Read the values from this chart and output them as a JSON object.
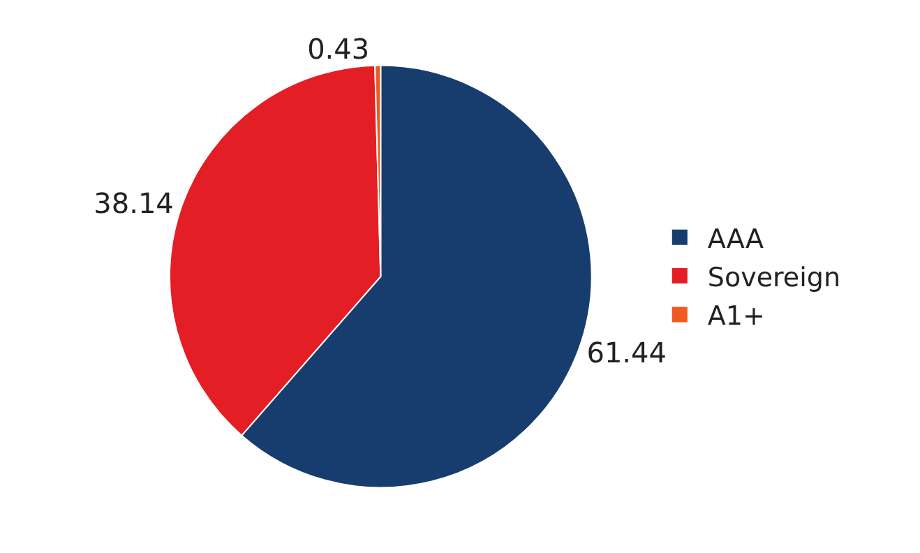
{
  "chart_data": {
    "type": "pie",
    "categories": [
      "AAA",
      "Sovereign",
      "A1+"
    ],
    "values": [
      61.44,
      38.14,
      0.43
    ],
    "colors": [
      "#173c6e",
      "#e31e24",
      "#f05a22"
    ],
    "data_labels": true,
    "legend": "right"
  }
}
